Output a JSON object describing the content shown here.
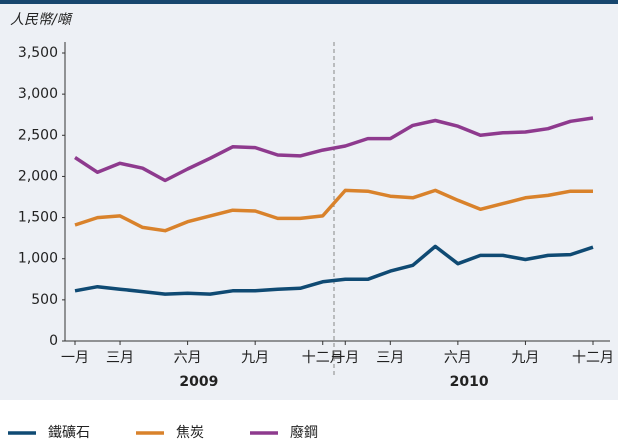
{
  "chart_data": {
    "type": "line",
    "y_unit_label": "人民幣/噸",
    "categories": [
      "一月",
      null,
      "三月",
      null,
      null,
      "六月",
      null,
      null,
      "九月",
      null,
      null,
      "十二月",
      "一月",
      null,
      "三月",
      null,
      null,
      "六月",
      null,
      null,
      "九月",
      null,
      null,
      "十二月"
    ],
    "x_groups": [
      "2009",
      "2010"
    ],
    "series": [
      {
        "name": "鐵礦石",
        "color": "#0f4a73",
        "values": [
          610,
          660,
          630,
          600,
          570,
          580,
          570,
          610,
          610,
          630,
          640,
          720,
          750,
          750,
          850,
          920,
          1150,
          940,
          1040,
          1040,
          990,
          1040,
          1050,
          1140
        ]
      },
      {
        "name": "焦炭",
        "color": "#d9822b",
        "values": [
          1410,
          1500,
          1520,
          1380,
          1340,
          1450,
          1520,
          1590,
          1580,
          1490,
          1490,
          1520,
          1830,
          1820,
          1760,
          1740,
          1830,
          1710,
          1600,
          1670,
          1740,
          1770,
          1820,
          1820
        ]
      },
      {
        "name": "廢鋼",
        "color": "#8e3a8e",
        "values": [
          2230,
          2050,
          2160,
          2100,
          1950,
          2090,
          2220,
          2360,
          2350,
          2260,
          2250,
          2320,
          2370,
          2460,
          2460,
          2620,
          2680,
          2610,
          2500,
          2530,
          2540,
          2580,
          2670,
          2710
        ]
      }
    ],
    "ylim": [
      0,
      3500
    ],
    "yticks": [
      0,
      500,
      {
        "value": 1000,
        "label": "1,000"
      },
      {
        "value": 1500,
        "label": "1,500"
      },
      {
        "value": 2000,
        "label": "2,000"
      },
      {
        "value": 2500,
        "label": "2,500"
      },
      {
        "value": 3000,
        "label": "3,000"
      },
      {
        "value": 3500,
        "label": "3,500"
      }
    ],
    "grid": false,
    "legend": "bottom"
  }
}
